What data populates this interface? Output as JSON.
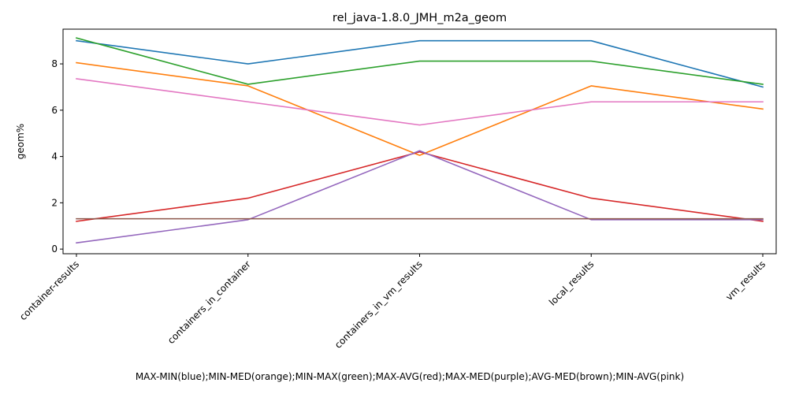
{
  "chart_data": {
    "type": "line",
    "title": "rel_java-1.8.0_JMH_m2a_geom",
    "xlabel": "MAX-MIN(blue);MIN-MED(orange);MIN-MAX(green);MAX-AVG(red);MAX-MED(purple);AVG-MED(brown);MIN-AVG(pink)",
    "ylabel": "geom%",
    "categories": [
      "container-results",
      "containers_in_container",
      "containers_in_vm_results",
      "local_results",
      "vm_results"
    ],
    "ylim": [
      -0.2,
      9.5
    ],
    "yticks": [
      0,
      2,
      4,
      6,
      8
    ],
    "grid": false,
    "legend": "none",
    "series": [
      {
        "color": "#1f77b4",
        "values": [
          9.0,
          8.0,
          9.0,
          9.0,
          7.0
        ]
      },
      {
        "color": "#ff7f0e",
        "values": [
          8.05,
          7.05,
          4.05,
          7.05,
          6.05
        ]
      },
      {
        "color": "#2ca02c",
        "values": [
          9.12,
          7.12,
          8.12,
          8.12,
          7.12
        ]
      },
      {
        "color": "#d62728",
        "values": [
          1.2,
          2.2,
          4.2,
          2.2,
          1.2
        ]
      },
      {
        "color": "#9467bd",
        "values": [
          0.27,
          1.27,
          4.25,
          1.27,
          1.27
        ]
      },
      {
        "color": "#8c564b",
        "values": [
          1.31,
          1.31,
          1.31,
          1.31,
          1.31
        ]
      },
      {
        "color": "#e377c2",
        "values": [
          7.36,
          6.36,
          5.36,
          6.36,
          6.36
        ]
      }
    ]
  }
}
